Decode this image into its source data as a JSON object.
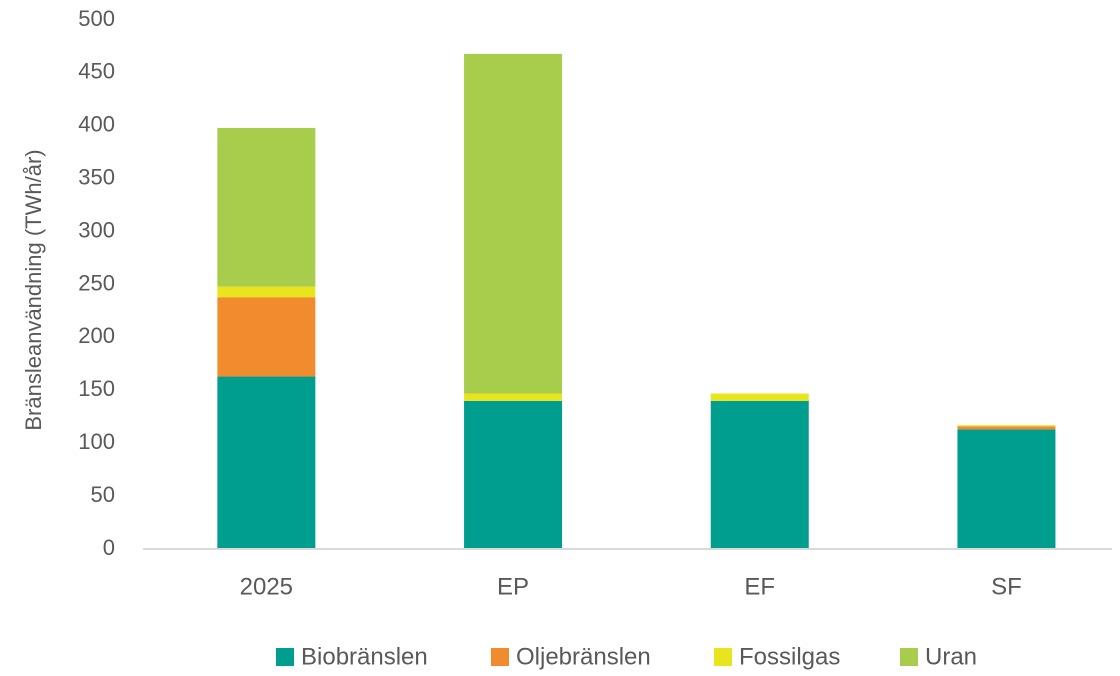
{
  "chart_data": {
    "type": "bar",
    "stacked": true,
    "y_label": "Bränsleanvändning (TWh/år)",
    "categories": [
      "2025",
      "EP",
      "EF",
      "SF"
    ],
    "series": [
      {
        "name": "Biobränslen",
        "color": "#009e8e",
        "values": [
          163,
          140,
          140,
          113
        ]
      },
      {
        "name": "Oljebränslen",
        "color": "#f08c2e",
        "values": [
          75,
          0,
          0,
          3
        ]
      },
      {
        "name": "Fossilgas",
        "color": "#e8e51e",
        "values": [
          10,
          7,
          7,
          1
        ]
      },
      {
        "name": "Uran",
        "color": "#a8cc4c",
        "values": [
          150,
          321,
          0,
          0
        ]
      }
    ],
    "ylim": [
      0,
      500
    ],
    "yticks": [
      0,
      50,
      100,
      150,
      200,
      250,
      300,
      350,
      400,
      450,
      500
    ],
    "grid": false,
    "legend": "bottom"
  }
}
